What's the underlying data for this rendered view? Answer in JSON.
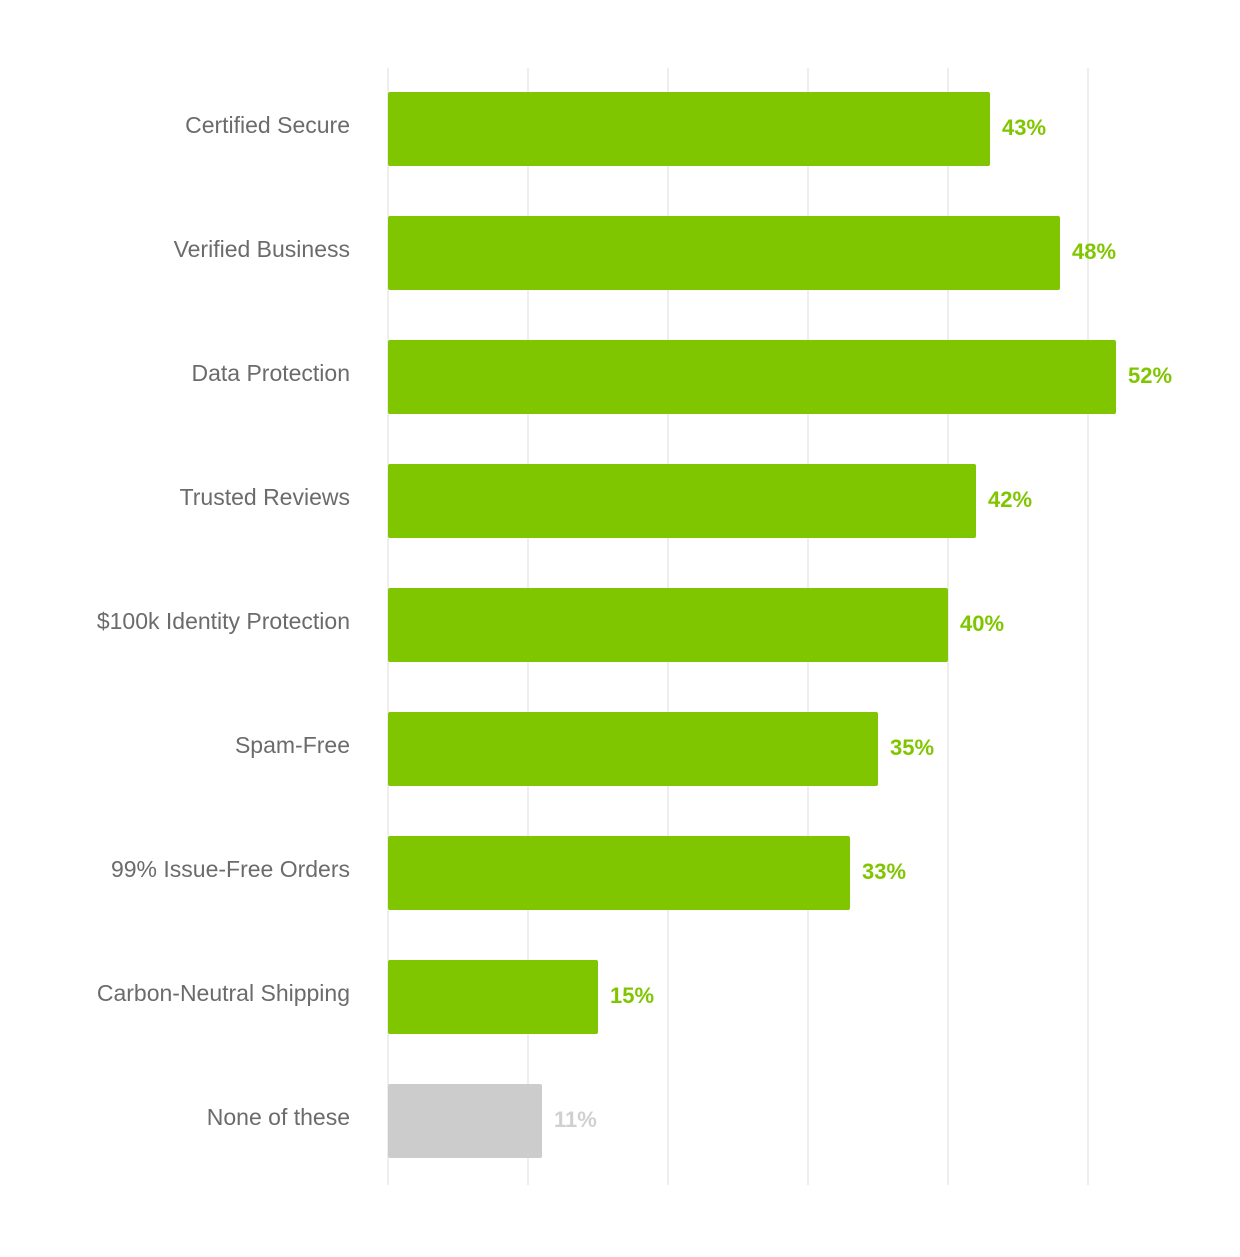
{
  "chart_data": {
    "type": "bar",
    "orientation": "horizontal",
    "categories": [
      "Certified Secure",
      "Verified Business",
      "Data Protection",
      "Trusted Reviews",
      "$100k Identity Protection",
      "Spam-Free",
      "99% Issue-Free Orders",
      "Carbon-Neutral Shipping",
      "None of these"
    ],
    "values": [
      43,
      48,
      52,
      42,
      40,
      35,
      33,
      15,
      11
    ],
    "value_labels": [
      "43%",
      "48%",
      "52%",
      "42%",
      "40%",
      "35%",
      "33%",
      "15%",
      "11%"
    ],
    "bar_colors": [
      "#80c600",
      "#80c600",
      "#80c600",
      "#80c600",
      "#80c600",
      "#80c600",
      "#80c600",
      "#80c600",
      "#cccccc"
    ],
    "label_colors": [
      "#80c600",
      "#80c600",
      "#80c600",
      "#80c600",
      "#80c600",
      "#80c600",
      "#80c600",
      "#80c600",
      "#d0d0d0"
    ],
    "xlim": [
      0,
      60
    ],
    "grid": true,
    "gridline_count": 6,
    "gridline_color": "#e8e8e8",
    "category_label_color": "#6b6b6b",
    "title": "",
    "xlabel": "",
    "ylabel": ""
  }
}
